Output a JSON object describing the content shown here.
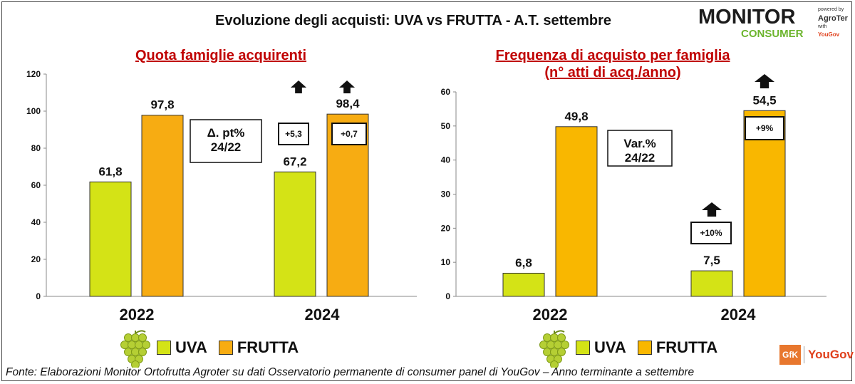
{
  "title": "Evoluzione degli acquisti: UVA vs FRUTTA  - A.T. settembre",
  "logo": {
    "name_top": "MONITOR",
    "name_bottom": "CONSUMER",
    "powered": "powered by",
    "partner": "AgroTer",
    "with": "with",
    "partner2": "YouGov"
  },
  "colors": {
    "uva": "#d4e316",
    "frutta": "#f9b700",
    "frutta_left": "#f7ac12",
    "grape_icon": "#b5cf34"
  },
  "legend": {
    "uva": "UVA",
    "frutta": "FRUTTA"
  },
  "chart_data": [
    {
      "type": "bar",
      "title": "Quota famiglie acquirenti",
      "categories": [
        "2022",
        "2024"
      ],
      "series": [
        {
          "name": "UVA",
          "values": [
            61.8,
            67.2
          ],
          "labels": [
            "61,8",
            "67,2"
          ]
        },
        {
          "name": "FRUTTA",
          "values": [
            97.8,
            98.4
          ],
          "labels": [
            "97,8",
            "98,4"
          ]
        }
      ],
      "ylim": [
        0,
        120
      ],
      "yticks": [
        0,
        20,
        40,
        60,
        80,
        100,
        120
      ],
      "annotations": {
        "box_label_lines": [
          "Δ. pt%",
          "24/22"
        ],
        "changes": [
          {
            "series": "UVA",
            "category": "2024",
            "text": "+5,3",
            "arrow": "up"
          },
          {
            "series": "FRUTTA",
            "category": "2024",
            "text": "+0,7",
            "arrow": "up"
          }
        ]
      }
    },
    {
      "type": "bar",
      "title": "Frequenza di acquisto per famiglia",
      "subtitle": "(n° atti di acq./anno)",
      "categories": [
        "2022",
        "2024"
      ],
      "series": [
        {
          "name": "UVA",
          "values": [
            6.8,
            7.5
          ],
          "labels": [
            "6,8",
            "7,5"
          ]
        },
        {
          "name": "FRUTTA",
          "values": [
            49.8,
            54.5
          ],
          "labels": [
            "49,8",
            "54,5"
          ]
        }
      ],
      "ylim": [
        0,
        60
      ],
      "yticks": [
        0,
        10,
        20,
        30,
        40,
        50,
        60
      ],
      "annotations": {
        "box_label_lines": [
          "Var.%",
          "24/22"
        ],
        "changes": [
          {
            "series": "UVA",
            "category": "2024",
            "text": "+10%",
            "arrow": "up"
          },
          {
            "series": "FRUTTA",
            "category": "2024",
            "text": "+9%",
            "arrow": "up"
          }
        ]
      }
    }
  ],
  "footer": "Fonte: Elaborazioni Monitor Ortofrutta Agroter su dati Osservatorio permanente di consumer panel di YouGov  – Anno terminante a settembre",
  "brand": {
    "gfk": "GfK",
    "yougov": "YouGov"
  }
}
